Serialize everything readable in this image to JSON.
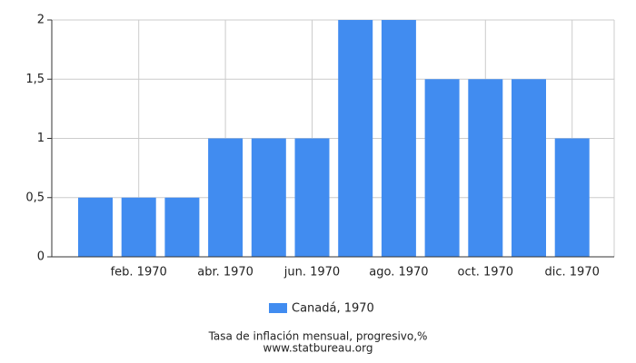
{
  "chart_data": {
    "type": "bar",
    "categories": [
      null,
      "feb. 1970",
      null,
      "abr. 1970",
      null,
      "jun. 1970",
      null,
      "ago. 1970",
      null,
      "oct. 1970",
      null,
      "dic. 1970"
    ],
    "series": [
      {
        "name": "Canadá, 1970",
        "color": "#418cf0",
        "values": [
          0.5,
          0.5,
          0.5,
          1,
          1,
          1,
          2,
          2,
          1.5,
          1.5,
          1.5,
          1
        ]
      }
    ],
    "ylim": [
      0,
      2
    ],
    "yticks": [
      0,
      {
        "value": 0.5,
        "label": "0,5"
      },
      1,
      {
        "value": 1.5,
        "label": "1,5"
      },
      2
    ],
    "grid": true,
    "legend": "bottom",
    "xlabel": "Tasa de inflación mensual, progresivo,%",
    "source": "www.statbureau.org"
  }
}
